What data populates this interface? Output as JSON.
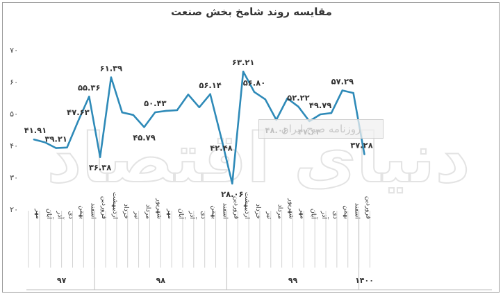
{
  "chart_data": {
    "type": "line",
    "title": "مقایسه روند شامخ بخش صنعت",
    "xlabel": "",
    "ylabel": "",
    "ylim": [
      20,
      70
    ],
    "yticks": [
      "۲۰",
      "۳۰",
      "۴۰",
      "۵۰",
      "۶۰",
      "۷۰"
    ],
    "grid": false,
    "line_color": "#2e8ab8",
    "categories": [
      "مهر",
      "آبان",
      "آذر",
      "دی",
      "بهمن",
      "اسفند",
      "فروردین",
      "اردیبهشت",
      "خرداد",
      "تیر",
      "مرداد",
      "شهریور",
      "مهر",
      "آبان",
      "آذر",
      "دی",
      "بهمن",
      "اسفند",
      "فروردین",
      "اردیبهشت",
      "خرداد",
      "تیر",
      "مرداد",
      "شهریور",
      "مهر",
      "آبان",
      "آذر",
      "دی",
      "بهمن",
      "اسفند",
      "فروردین"
    ],
    "values": [
      41.91,
      41.0,
      39.21,
      39.4,
      47.63,
      55.36,
      36.38,
      61.39,
      50.4,
      49.6,
      45.79,
      50.43,
      50.9,
      51.1,
      56.0,
      52.0,
      56.14,
      42.48,
      28.06,
      63.21,
      56.8,
      54.5,
      48.06,
      54.8,
      52.22,
      47.63,
      49.79,
      50.2,
      57.29,
      56.5,
      37.28
    ],
    "year_groups": [
      {
        "label": "۹۷",
        "start": 0,
        "end": 5
      },
      {
        "label": "۹۸",
        "start": 6,
        "end": 17
      },
      {
        "label": "۹۹",
        "start": 18,
        "end": 29
      },
      {
        "label": "۱۴۰۰",
        "start": 30,
        "end": 30
      }
    ],
    "data_labels": [
      {
        "index": 0,
        "text": "۴۱.۹۱",
        "pos": "above"
      },
      {
        "index": 2,
        "text": "۳۹.۲۱",
        "pos": "above"
      },
      {
        "index": 4,
        "text": "۴۷.۶۳",
        "pos": "above"
      },
      {
        "index": 5,
        "text": "۵۵.۳۶",
        "pos": "above"
      },
      {
        "index": 6,
        "text": "۳۶.۳۸",
        "pos": "below"
      },
      {
        "index": 7,
        "text": "۶۱.۳۹",
        "pos": "above"
      },
      {
        "index": 10,
        "text": "۴۵.۷۹",
        "pos": "below"
      },
      {
        "index": 11,
        "text": "۵۰.۴۳",
        "pos": "above"
      },
      {
        "index": 16,
        "text": "۵۶.۱۴",
        "pos": "above"
      },
      {
        "index": 17,
        "text": "۴۲.۴۸",
        "pos": "below"
      },
      {
        "index": 18,
        "text": "۲۸.۰۶",
        "pos": "below"
      },
      {
        "index": 19,
        "text": "۶۳.۲۱",
        "pos": "above"
      },
      {
        "index": 20,
        "text": "۵۶.۸۰",
        "pos": "above"
      },
      {
        "index": 22,
        "text": "۴۸.۰۶",
        "pos": "below"
      },
      {
        "index": 24,
        "text": "۵۲.۲۲",
        "pos": "above"
      },
      {
        "index": 25,
        "text": "۴۷.۶۳",
        "pos": "below"
      },
      {
        "index": 26,
        "text": "۴۹.۷۹",
        "pos": "above"
      },
      {
        "index": 28,
        "text": "۵۷.۲۹",
        "pos": "above"
      },
      {
        "index": 30,
        "text": "۳۷.۲۸",
        "pos": "above"
      }
    ]
  },
  "watermark": {
    "logo_text": "دنیای اقتصاد",
    "banner_text": "روزنامه صبح ایران"
  }
}
